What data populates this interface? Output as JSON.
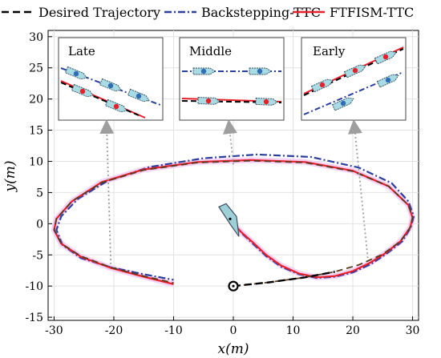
{
  "chart_data": {
    "type": "line",
    "xlabel": "x(m)",
    "ylabel": "y(m)",
    "xlim": [
      -31,
      31
    ],
    "ylim": [
      -15.5,
      31
    ],
    "xticks": [
      -30,
      -20,
      -10,
      0,
      10,
      20,
      30
    ],
    "yticks": [
      -15,
      -10,
      -5,
      0,
      5,
      10,
      15,
      20,
      25,
      30
    ],
    "grid": true,
    "legend_position": "top",
    "series": [
      {
        "name": "Desired Trajectory",
        "style": "dashed",
        "color": "#000000"
      },
      {
        "name": "Backstepping-TTC",
        "style": "dashdot",
        "color": "#2b3f9e"
      },
      {
        "name": "FTFISM-TTC",
        "style": "solid",
        "color": "#e8202a"
      }
    ],
    "start_point": [
      0,
      -10
    ],
    "vessel_position": [
      0,
      0
    ],
    "desired_path": [
      [
        0,
        -10
      ],
      [
        6,
        -9.4
      ],
      [
        12,
        -8.6
      ],
      [
        17,
        -7.7
      ],
      [
        21,
        -6.6
      ],
      [
        25,
        -4.9
      ],
      [
        28,
        -2.8
      ],
      [
        29.6,
        -0.6
      ],
      [
        30,
        1
      ],
      [
        29.3,
        3
      ],
      [
        26,
        6
      ],
      [
        20,
        8.4
      ],
      [
        12,
        9.8
      ],
      [
        3,
        10.1
      ],
      [
        -6,
        9.8
      ],
      [
        -15,
        8.6
      ],
      [
        -22,
        6.6
      ],
      [
        -27,
        3.6
      ],
      [
        -29.6,
        0.8
      ],
      [
        -30,
        -1
      ],
      [
        -28.8,
        -3.2
      ],
      [
        -25.5,
        -5.2
      ],
      [
        -20.5,
        -7
      ],
      [
        -15,
        -8.4
      ],
      [
        -10,
        -9.5
      ]
    ],
    "ftfism_path": [
      [
        0,
        0
      ],
      [
        1.5,
        -1.5
      ],
      [
        3.5,
        -3.2
      ],
      [
        5.5,
        -5
      ],
      [
        8,
        -6.7
      ],
      [
        11,
        -8
      ],
      [
        14,
        -8.6
      ],
      [
        17,
        -8.4
      ],
      [
        20,
        -7.6
      ],
      [
        23,
        -6.2
      ],
      [
        25.5,
        -4.7
      ],
      [
        28,
        -2.8
      ],
      [
        29.6,
        -0.6
      ],
      [
        30,
        1
      ],
      [
        29.3,
        3
      ],
      [
        26,
        6
      ],
      [
        20,
        8.5
      ],
      [
        12,
        9.9
      ],
      [
        3,
        10.2
      ],
      [
        -6,
        9.9
      ],
      [
        -15,
        8.7
      ],
      [
        -22,
        6.7
      ],
      [
        -27,
        3.6
      ],
      [
        -29.6,
        0.8
      ],
      [
        -30,
        -1
      ],
      [
        -28.8,
        -3.2
      ],
      [
        -25.5,
        -5.3
      ],
      [
        -20.5,
        -7.1
      ],
      [
        -15,
        -8.5
      ],
      [
        -10,
        -9.7
      ]
    ],
    "backstepping_path": [
      [
        0,
        0
      ],
      [
        1.5,
        -1.6
      ],
      [
        3.5,
        -3.4
      ],
      [
        5.5,
        -5.2
      ],
      [
        8,
        -6.9
      ],
      [
        11,
        -8.1
      ],
      [
        14,
        -8.7
      ],
      [
        17,
        -8.5
      ],
      [
        20,
        -7.8
      ],
      [
        23,
        -6.5
      ],
      [
        25.8,
        -4.7
      ],
      [
        28.3,
        -2.8
      ],
      [
        29.7,
        -0.6
      ],
      [
        30.2,
        1.2
      ],
      [
        29.3,
        3.6
      ],
      [
        26.5,
        6.5
      ],
      [
        21,
        9
      ],
      [
        13,
        10.7
      ],
      [
        4,
        11.1
      ],
      [
        -5,
        10.5
      ],
      [
        -14,
        9.1
      ],
      [
        -21,
        6.9
      ],
      [
        -26,
        4
      ],
      [
        -28.8,
        1.2
      ],
      [
        -29.6,
        -1
      ],
      [
        -28.6,
        -3.4
      ],
      [
        -25.5,
        -5.5
      ],
      [
        -20.5,
        -7
      ],
      [
        -15,
        -8.1
      ],
      [
        -10,
        -9
      ]
    ],
    "insets": [
      {
        "title": "Late",
        "pointer_target": [
          -20.5,
          -6.5
        ]
      },
      {
        "title": "Middle",
        "pointer_target": [
          0,
          9.5
        ]
      },
      {
        "title": "Early",
        "pointer_target": [
          22.5,
          -5.5
        ]
      }
    ]
  }
}
